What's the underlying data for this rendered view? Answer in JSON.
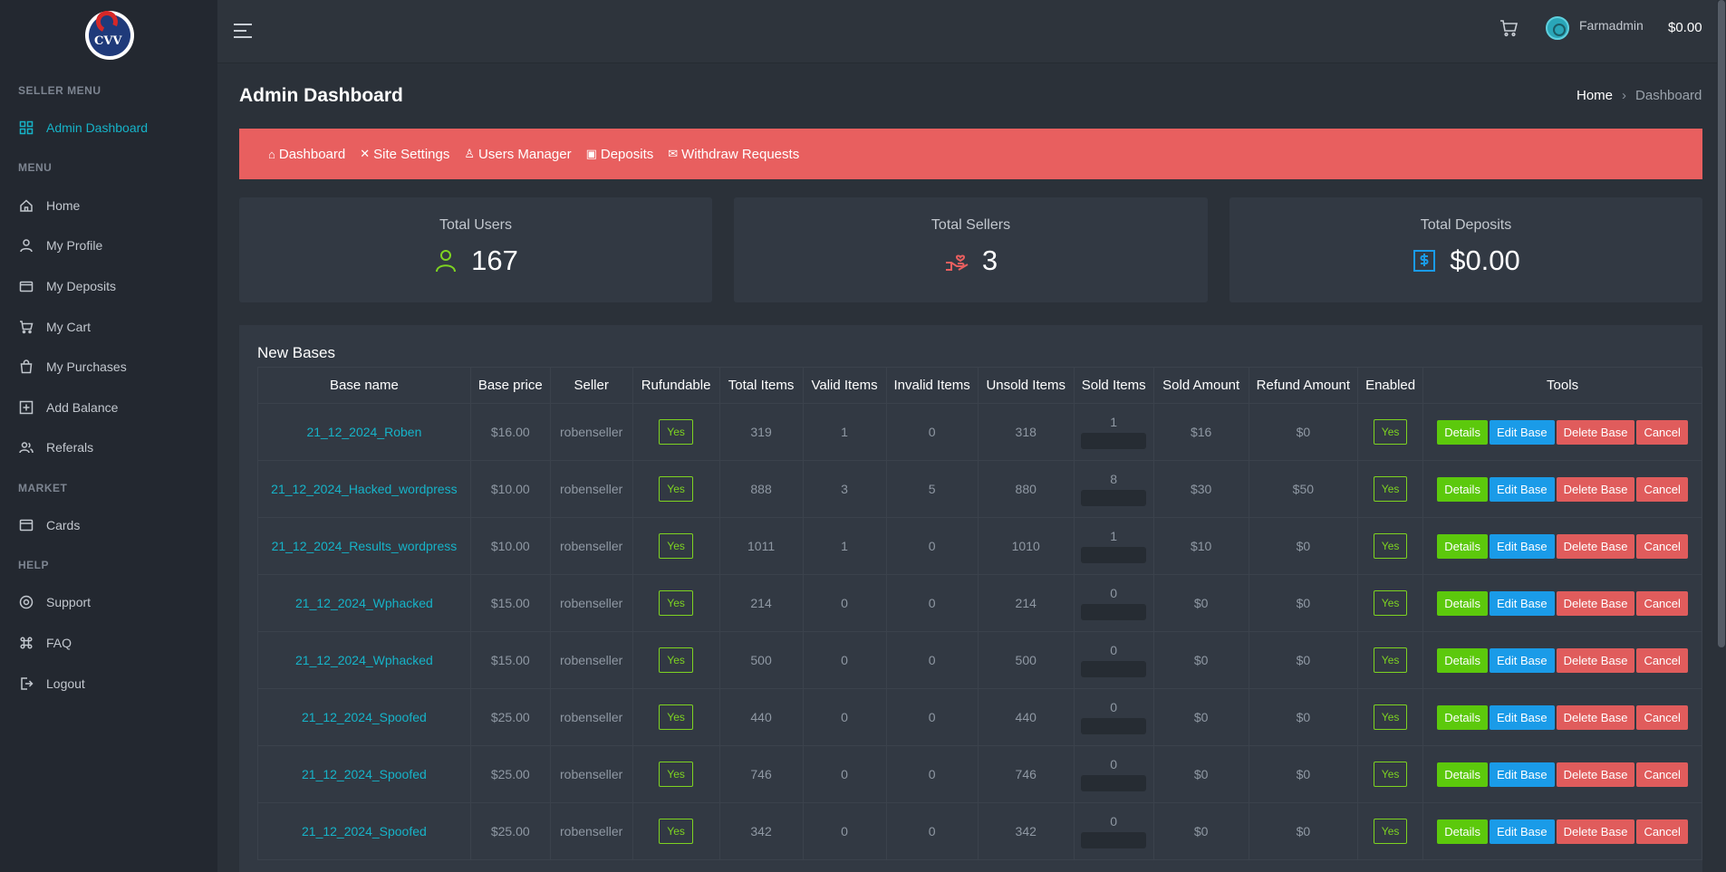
{
  "sidebar": {
    "logo_text": "CVV",
    "sections": {
      "seller": "SELLER MENU",
      "menu": "MENU",
      "market": "MARKET",
      "help": "HELP"
    },
    "items": {
      "admin_dashboard": "Admin Dashboard",
      "home": "Home",
      "my_profile": "My Profile",
      "my_deposits": "My Deposits",
      "my_cart": "My Cart",
      "my_purchases": "My Purchases",
      "add_balance": "Add Balance",
      "referals": "Referals",
      "cards": "Cards",
      "support": "Support",
      "faq": "FAQ",
      "logout": "Logout"
    }
  },
  "topbar": {
    "username": "Farmadmin",
    "balance": "$0.00"
  },
  "page": {
    "title": "Admin Dashboard",
    "breadcrumb_home": "Home",
    "breadcrumb_sep": "›",
    "breadcrumb_current": "Dashboard"
  },
  "admin_nav": {
    "dashboard": "Dashboard",
    "site_settings": "Site Settings",
    "users_manager": "Users Manager",
    "deposits": "Deposits",
    "withdraw_requests": "Withdraw Requests"
  },
  "stats": {
    "total_users_label": "Total Users",
    "total_users_value": "167",
    "total_sellers_label": "Total Sellers",
    "total_sellers_value": "3",
    "total_deposits_label": "Total Deposits",
    "total_deposits_value": "$0.00"
  },
  "table": {
    "title": "New Bases",
    "headers": [
      "Base name",
      "Base price",
      "Seller",
      "Rufundable",
      "Total Items",
      "Valid Items",
      "Invalid Items",
      "Unsold Items",
      "Sold Items",
      "Sold Amount",
      "Refund Amount",
      "Enabled",
      "Tools"
    ],
    "buttons": {
      "details": "Details",
      "edit": "Edit Base",
      "delete": "Delete Base",
      "cancel": "Cancel"
    },
    "rows": [
      {
        "name": "21_12_2024_Roben",
        "price": "$16.00",
        "seller": "robenseller",
        "refundable": "Yes",
        "total": "319",
        "valid": "1",
        "invalid": "0",
        "unsold": "318",
        "sold": "1",
        "sold_amount": "$16",
        "refund_amount": "$0",
        "enabled": "Yes"
      },
      {
        "name": "21_12_2024_Hacked_wordpress",
        "price": "$10.00",
        "seller": "robenseller",
        "refundable": "Yes",
        "total": "888",
        "valid": "3",
        "invalid": "5",
        "unsold": "880",
        "sold": "8",
        "sold_amount": "$30",
        "refund_amount": "$50",
        "enabled": "Yes"
      },
      {
        "name": "21_12_2024_Results_wordpress",
        "price": "$10.00",
        "seller": "robenseller",
        "refundable": "Yes",
        "total": "1011",
        "valid": "1",
        "invalid": "0",
        "unsold": "1010",
        "sold": "1",
        "sold_amount": "$10",
        "refund_amount": "$0",
        "enabled": "Yes"
      },
      {
        "name": "21_12_2024_Wphacked",
        "price": "$15.00",
        "seller": "robenseller",
        "refundable": "Yes",
        "total": "214",
        "valid": "0",
        "invalid": "0",
        "unsold": "214",
        "sold": "0",
        "sold_amount": "$0",
        "refund_amount": "$0",
        "enabled": "Yes"
      },
      {
        "name": "21_12_2024_Wphacked",
        "price": "$15.00",
        "seller": "robenseller",
        "refundable": "Yes",
        "total": "500",
        "valid": "0",
        "invalid": "0",
        "unsold": "500",
        "sold": "0",
        "sold_amount": "$0",
        "refund_amount": "$0",
        "enabled": "Yes"
      },
      {
        "name": "21_12_2024_Spoofed",
        "price": "$25.00",
        "seller": "robenseller",
        "refundable": "Yes",
        "total": "440",
        "valid": "0",
        "invalid": "0",
        "unsold": "440",
        "sold": "0",
        "sold_amount": "$0",
        "refund_amount": "$0",
        "enabled": "Yes"
      },
      {
        "name": "21_12_2024_Spoofed",
        "price": "$25.00",
        "seller": "robenseller",
        "refundable": "Yes",
        "total": "746",
        "valid": "0",
        "invalid": "0",
        "unsold": "746",
        "sold": "0",
        "sold_amount": "$0",
        "refund_amount": "$0",
        "enabled": "Yes"
      },
      {
        "name": "21_12_2024_Spoofed",
        "price": "$25.00",
        "seller": "robenseller",
        "refundable": "Yes",
        "total": "342",
        "valid": "0",
        "invalid": "0",
        "unsold": "342",
        "sold": "0",
        "sold_amount": "$0",
        "refund_amount": "$0",
        "enabled": "Yes"
      }
    ]
  },
  "colors": {
    "accent": "#16b3c8",
    "nav_red": "#e85f5f",
    "success": "#5cc90c",
    "info": "#1a9be8",
    "danger": "#e05c5c"
  },
  "icons": {
    "admin_dashboard": "grid-icon",
    "home": "home-icon",
    "my_profile": "user-icon",
    "my_deposits": "wallet-icon",
    "my_cart": "cart-icon",
    "my_purchases": "bag-icon",
    "add_balance": "plus-square-icon",
    "referals": "users-icon",
    "cards": "card-icon",
    "support": "support-icon",
    "faq": "command-icon",
    "logout": "logout-icon"
  }
}
